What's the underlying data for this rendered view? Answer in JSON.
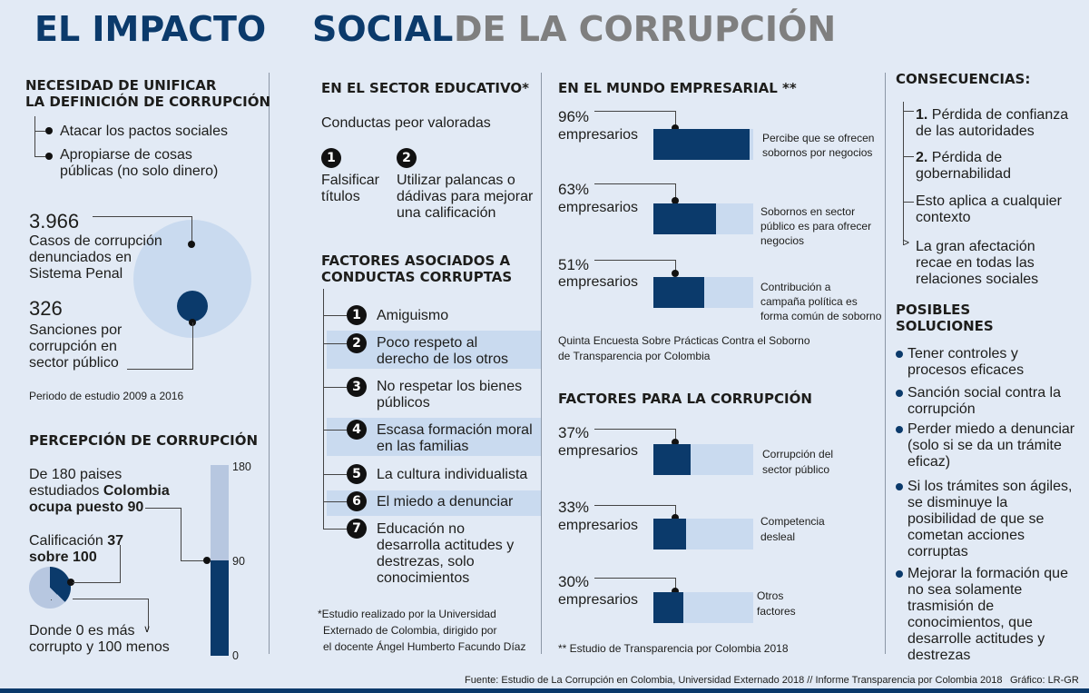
{
  "title": {
    "part1": "EL IMPACTO",
    "part2": "SOCIAL",
    "part3": "DE LA CORRUPCIÓN"
  },
  "col1": {
    "heading1": [
      "NECESIDAD DE UNIFICAR",
      "LA DEFINICIÓN DE CORRUPCIÓN"
    ],
    "bullets": [
      "Atacar los pactos sociales",
      "Apropiarse de cosas",
      "públicas (no solo dinero)"
    ],
    "cases_number": "3.966",
    "cases_text": [
      "Casos de corrupción",
      "denunciados en",
      "Sistema Penal"
    ],
    "sanctions_number": "326",
    "sanctions_text": [
      "Sanciones por",
      "corrupción en",
      "sector público"
    ],
    "period": "Periodo de estudio 2009 a 2016",
    "heading2": "PERCEPCIÓN DE CORRUPCIÓN",
    "rank_line1": "De 180 paises",
    "rank_line2_a": "estudiados ",
    "rank_line2_b": "Colombia",
    "rank_line3": "ocupa puesto 90",
    "score_line1_a": "Calificación ",
    "score_line1_b": "37",
    "score_line2": "sobre 100",
    "scale_text": [
      "Donde 0 es más",
      "corrupto y 100 menos"
    ],
    "scale_labels": {
      "top": "180",
      "mid": "90",
      "bottom": "0"
    },
    "rank_value": 90,
    "rank_max": 180,
    "score_value": 37,
    "score_max": 100
  },
  "col2": {
    "heading1": "EN EL SECTOR EDUCATIVO*",
    "subheading": "Conductas peor valoradas",
    "conduct1_num": "1",
    "conduct1": [
      "Falsificar",
      "títulos"
    ],
    "conduct2_num": "2",
    "conduct2": [
      "Utilizar palancas o",
      "dádivas para mejorar",
      "una calificación"
    ],
    "heading2": [
      "FACTORES ASOCIADOS A",
      "CONDUCTAS CORRUPTAS"
    ],
    "factors": [
      {
        "num": "1",
        "lines": [
          "Amiguismo"
        ]
      },
      {
        "num": "2",
        "lines": [
          "Poco respeto al",
          "derecho de los otros"
        ]
      },
      {
        "num": "3",
        "lines": [
          "No respetar los bienes",
          "públicos"
        ]
      },
      {
        "num": "4",
        "lines": [
          "Escasa formación moral",
          "en las familias"
        ]
      },
      {
        "num": "5",
        "lines": [
          "La cultura individualista"
        ]
      },
      {
        "num": "6",
        "lines": [
          "El miedo a denunciar"
        ]
      },
      {
        "num": "7",
        "lines": [
          "Educación no",
          "desarrolla actitudes y",
          "destrezas, solo",
          "conocimientos"
        ]
      }
    ],
    "footnote": [
      "*Estudio realizado por la Universidad",
      "Externado de Colombia, dirigido por",
      "el docente Ángel Humberto Facundo Díaz"
    ]
  },
  "col3": {
    "heading1": "EN EL MUNDO EMPRESARIAL **",
    "business": [
      {
        "pct": "96%",
        "unit": "empresarios",
        "value": 96,
        "label": [
          "Percibe que se ofrecen",
          "sobornos por negocios"
        ]
      },
      {
        "pct": "63%",
        "unit": "empresarios",
        "value": 63,
        "label": [
          "Sobornos en sector",
          "público es para ofrecer",
          "negocios"
        ]
      },
      {
        "pct": "51%",
        "unit": "empresarios",
        "value": 51,
        "label": [
          "Contribución a",
          "campaña política es",
          "forma común de soborno"
        ]
      }
    ],
    "source1": [
      "Quinta Encuesta Sobre Prácticas Contra el Soborno",
      "de Transparencia por Colombia"
    ],
    "heading2": "FACTORES PARA LA CORRUPCIÓN",
    "factors": [
      {
        "pct": "37%",
        "unit": "empresarios",
        "value": 37,
        "label": [
          "Corrupción del",
          "sector público"
        ]
      },
      {
        "pct": "33%",
        "unit": "empresarios",
        "value": 33,
        "label": [
          "Competencia",
          "desleal"
        ]
      },
      {
        "pct": "30%",
        "unit": "empresarios",
        "value": 30,
        "label": [
          "Otros",
          "factores"
        ]
      }
    ],
    "footnote": "** Estudio de Transparencia por Colombia 2018"
  },
  "col4": {
    "heading1": "CONSECUENCIAS:",
    "cons": [
      {
        "bold": "1.",
        "lines": [
          "Pérdida de confianza",
          "de las autoridades"
        ]
      },
      {
        "bold": "2.",
        "lines": [
          "Pérdida de",
          "gobernabilidad"
        ]
      },
      {
        "bold": "",
        "lines": [
          "Esto aplica a cualquier",
          "contexto"
        ]
      },
      {
        "bold": "",
        "lines": [
          "La gran afectación",
          "recae en todas las",
          "relaciones sociales"
        ]
      }
    ],
    "heading2": [
      "POSIBLES",
      "SOLUCIONES"
    ],
    "solutions": [
      [
        "Tener controles y",
        "procesos eficaces"
      ],
      [
        "Sanción social contra la",
        "corrupción"
      ],
      [
        "Perder miedo a denunciar",
        "(solo si se da un trámite",
        "eficaz)"
      ],
      [
        "Si los trámites son ágiles,",
        "se disminuye la",
        "posibilidad de que se",
        "cometan acciones",
        "corruptas"
      ],
      [
        "Mejorar la formación que",
        "no sea solamente",
        "trasmisión de",
        "conocimientos, que",
        "desarrolle actitudes y",
        "destrezas"
      ]
    ]
  },
  "footer": {
    "source": "Fuente: Estudio de La Corrupción en Colombia, Universidad Externado 2018 // Informe Transparencia por Colombia 2018",
    "credit": "Gráfico: LR-GR"
  },
  "colors": {
    "navy": "#0b3a6b",
    "light": "#c9daef",
    "background": "#e2eaf5",
    "grey": "#7f7f7f"
  }
}
